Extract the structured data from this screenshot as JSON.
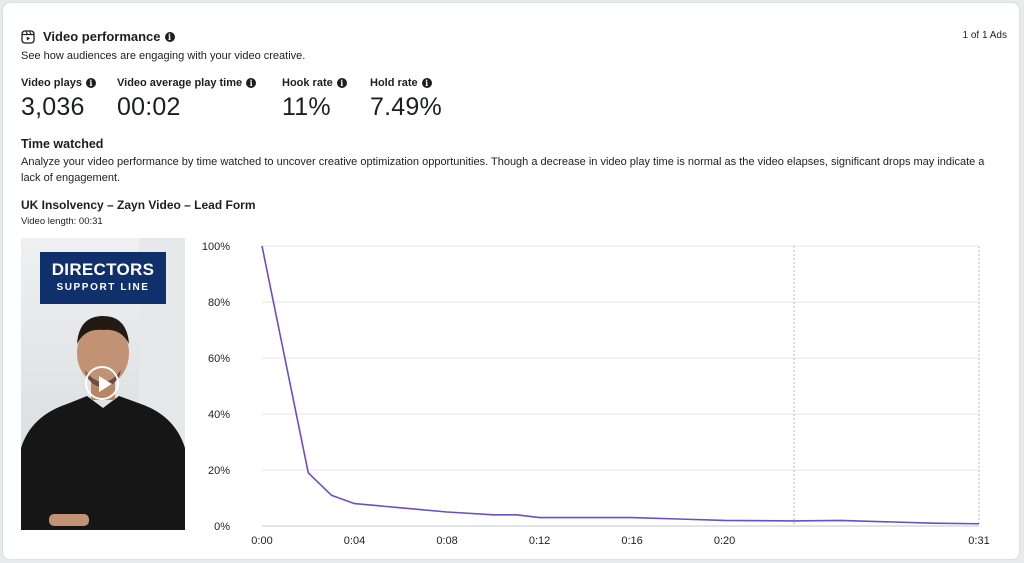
{
  "header": {
    "title": "Video performance",
    "subtitle": "See how audiences are engaging with your video creative.",
    "pager": "1 of 1 Ads",
    "title_icon": "reel-icon",
    "info_icon": "info-icon"
  },
  "metrics": [
    {
      "label": "Video plays",
      "value": "3,036"
    },
    {
      "label": "Video average play time",
      "value": "00:02"
    },
    {
      "label": "Hook rate",
      "value": "11%"
    },
    {
      "label": "Hold rate",
      "value": "7.49%"
    }
  ],
  "time_watched": {
    "title": "Time watched",
    "description": "Analyze your video performance by time watched to uncover creative optimization opportunities. Though a decrease in video play time is normal as the video elapses, significant drops may indicate a lack of engagement."
  },
  "ad": {
    "name": "UK Insolvency – Zayn Video – Lead Form",
    "length": "Video length: 00:31",
    "thumbnail_logo_line1": "DIRECTORS",
    "thumbnail_logo_line2": "SUPPORT LINE",
    "play_icon": "play-icon"
  },
  "colors": {
    "line": "#6a4fc4",
    "logo_bg": "#10306b"
  },
  "chart_data": {
    "type": "line",
    "x": [
      0,
      2,
      3,
      4,
      6,
      8,
      10,
      11,
      12,
      14,
      16,
      18,
      20,
      23,
      25,
      29,
      31
    ],
    "series": [
      {
        "values": [
          100,
          19,
          11,
          8,
          6.5,
          5,
          4,
          4,
          3,
          3,
          3,
          2.5,
          2,
          1.8,
          2,
          1,
          0.8
        ]
      }
    ],
    "x_ticks": [
      0,
      4,
      8,
      12,
      16,
      20,
      31
    ],
    "x_tick_labels": [
      "0:00",
      "0:04",
      "0:08",
      "0:12",
      "0:16",
      "0:20",
      "0:31"
    ],
    "y_ticks": [
      0,
      20,
      40,
      60,
      80,
      100
    ],
    "y_tick_labels": [
      "0%",
      "20%",
      "40%",
      "60%",
      "80%",
      "100%"
    ],
    "xlim": [
      0,
      31
    ],
    "ylim": [
      0,
      100
    ],
    "x_marker_lines": [
      23,
      31
    ],
    "grid": true
  }
}
